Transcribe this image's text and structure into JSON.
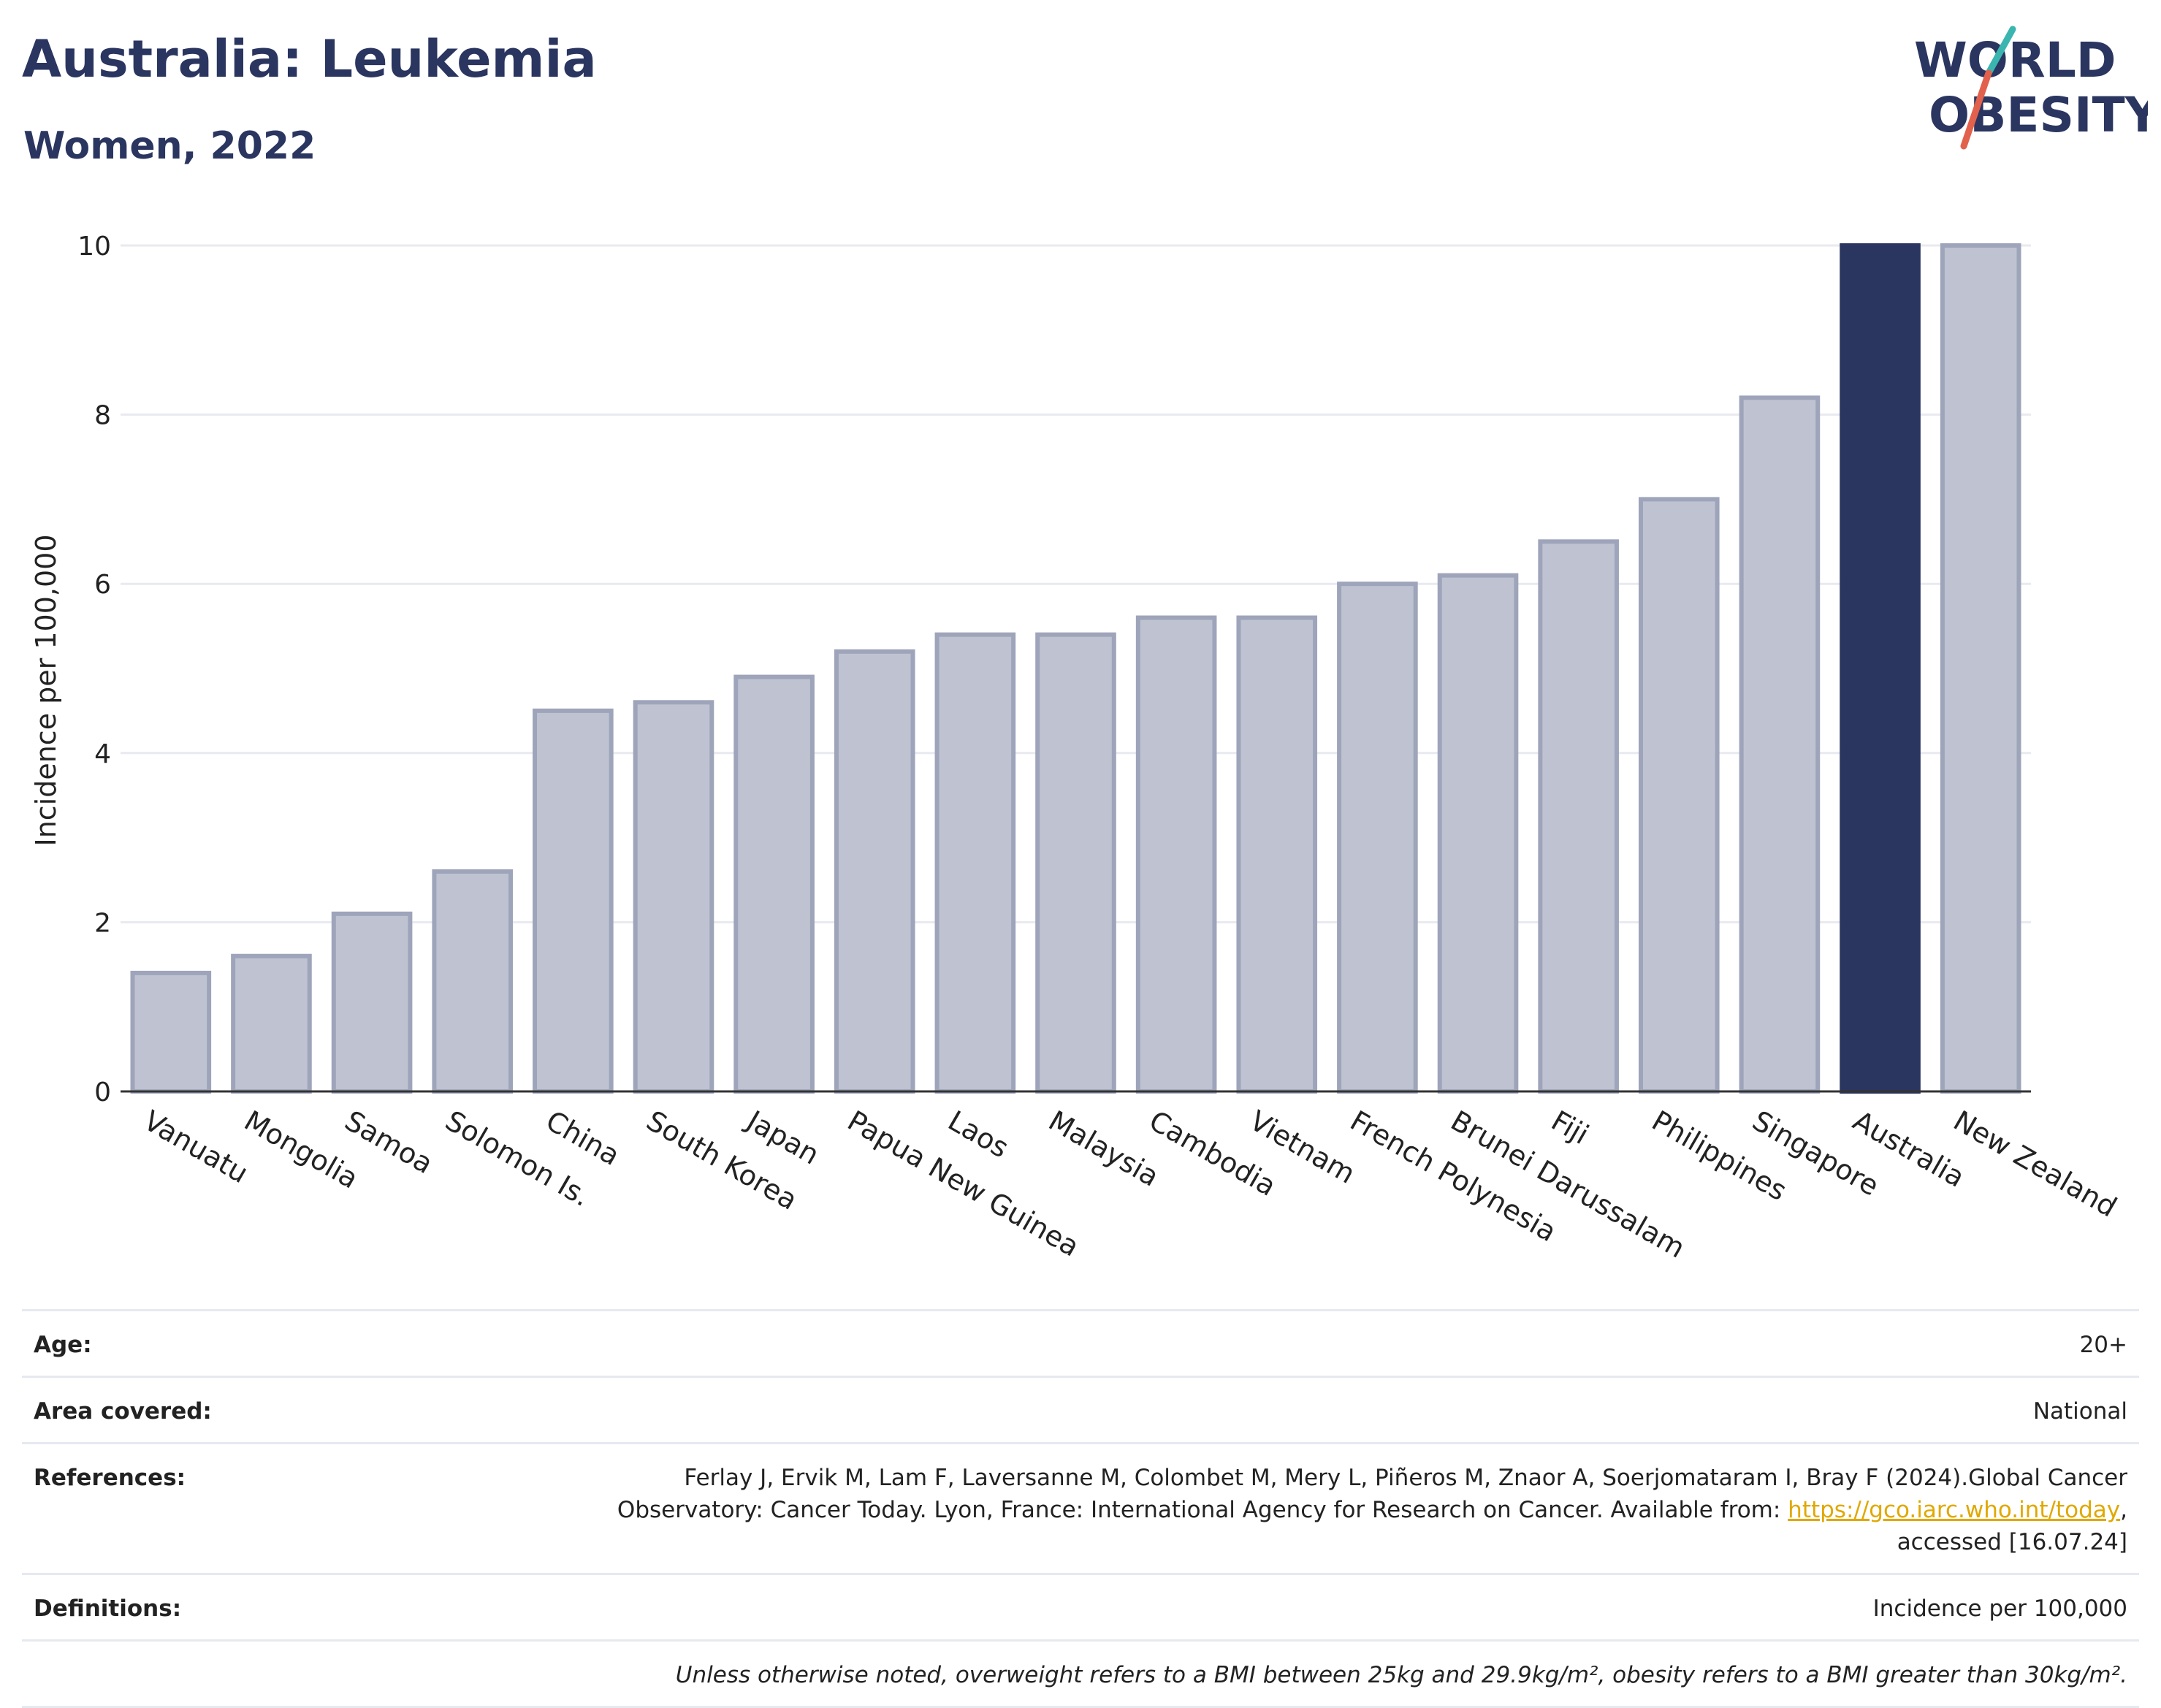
{
  "header": {
    "title": "Australia: Leukemia",
    "subtitle": "Women, 2022",
    "logo_line1": "WORLD",
    "logo_line2": "OBESITY"
  },
  "chart_data": {
    "type": "bar",
    "title": "Australia: Leukemia",
    "subtitle": "Women, 2022",
    "ylabel": "Incidence per 100,000",
    "xlabel": "",
    "ylim": [
      0,
      10
    ],
    "yticks": [
      0,
      2,
      4,
      6,
      8,
      10
    ],
    "grid": true,
    "highlight": "Australia",
    "categories": [
      "Vanuatu",
      "Mongolia",
      "Samoa",
      "Solomon Is.",
      "China",
      "South Korea",
      "Japan",
      "Papua New Guinea",
      "Laos",
      "Malaysia",
      "Cambodia",
      "Vietnam",
      "French Polynesia",
      "Brunei Darussalam",
      "Fiji",
      "Philippines",
      "Singapore",
      "Australia",
      "New Zealand"
    ],
    "values": [
      1.4,
      1.6,
      2.1,
      2.6,
      4.5,
      4.6,
      4.9,
      5.2,
      5.4,
      5.4,
      5.6,
      5.6,
      6.0,
      6.1,
      6.5,
      7.0,
      8.2,
      10.0,
      10.0
    ],
    "colors": {
      "bar": "#bfc3d1",
      "bar_border": "#9ea4ba",
      "highlight": "#2b3660",
      "grid": "#e8eaef",
      "axis": "#333333"
    }
  },
  "info": {
    "age_label": "Age:",
    "age_value": "20+",
    "area_label": "Area covered:",
    "area_value": "National",
    "references_label": "References:",
    "references_line1": "Ferlay J, Ervik M, Lam F, Laversanne M, Colombet M, Mery L, Piñeros M, Znaor A, Soerjomataram I, Bray F (2024).Global Cancer",
    "references_line2": "Observatory: Cancer Today. Lyon, France: International Agency for Research on Cancer. Available from: ",
    "references_link": "https://gco.iarc.who.int/today",
    "references_line2_end": ",",
    "references_line3": "accessed [16.07.24]",
    "definitions_label": "Definitions:",
    "definitions_value": "Incidence per 100,000",
    "note": "Unless otherwise noted, overweight refers to a BMI between 25kg and 29.9kg/m², obesity refers to a BMI greater than 30kg/m²."
  }
}
